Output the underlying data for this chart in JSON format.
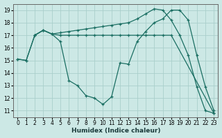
{
  "xlabel": "Humidex (Indice chaleur)",
  "xlim": [
    -0.5,
    23.5
  ],
  "ylim": [
    10.5,
    19.5
  ],
  "yticks": [
    11,
    12,
    13,
    14,
    15,
    16,
    17,
    18,
    19
  ],
  "xticks": [
    0,
    1,
    2,
    3,
    4,
    5,
    6,
    7,
    8,
    9,
    10,
    11,
    12,
    13,
    14,
    15,
    16,
    17,
    18,
    19,
    20,
    21,
    22,
    23
  ],
  "bg_color": "#cce8e5",
  "grid_color": "#aacfcb",
  "line_color": "#1a6e62",
  "line1_x": [
    0,
    1,
    2,
    3,
    4,
    5,
    6,
    7,
    8,
    9,
    10,
    11,
    12,
    13,
    14,
    15,
    16,
    17,
    18,
    19,
    20,
    21,
    22,
    23
  ],
  "line1_y": [
    15.1,
    15.0,
    17.0,
    17.4,
    17.1,
    16.5,
    13.4,
    13.0,
    12.2,
    12.0,
    11.5,
    12.1,
    14.8,
    14.7,
    16.5,
    17.3,
    18.0,
    18.3,
    19.0,
    19.0,
    18.2,
    15.4,
    12.9,
    11.0
  ],
  "line2_x": [
    0,
    1,
    2,
    3,
    4,
    5,
    6,
    7,
    8,
    9,
    10,
    11,
    12,
    13,
    14,
    15,
    16,
    17,
    18,
    23
  ],
  "line2_y": [
    15.1,
    15.0,
    17.0,
    17.4,
    17.1,
    17.0,
    17.0,
    17.0,
    17.0,
    17.0,
    17.0,
    17.0,
    17.0,
    17.0,
    17.0,
    17.0,
    17.0,
    17.0,
    17.0,
    10.8
  ],
  "line3_x": [
    2,
    3,
    4,
    5,
    6,
    7,
    8,
    9,
    10,
    11,
    12,
    13,
    14,
    15,
    16,
    17,
    18,
    19,
    20,
    21,
    22,
    23
  ],
  "line3_y": [
    17.0,
    17.4,
    17.1,
    17.2,
    17.3,
    17.4,
    17.5,
    17.6,
    17.7,
    17.8,
    17.9,
    18.0,
    18.3,
    18.7,
    19.1,
    19.0,
    18.2,
    17.0,
    15.4,
    12.9,
    11.0,
    10.8
  ]
}
